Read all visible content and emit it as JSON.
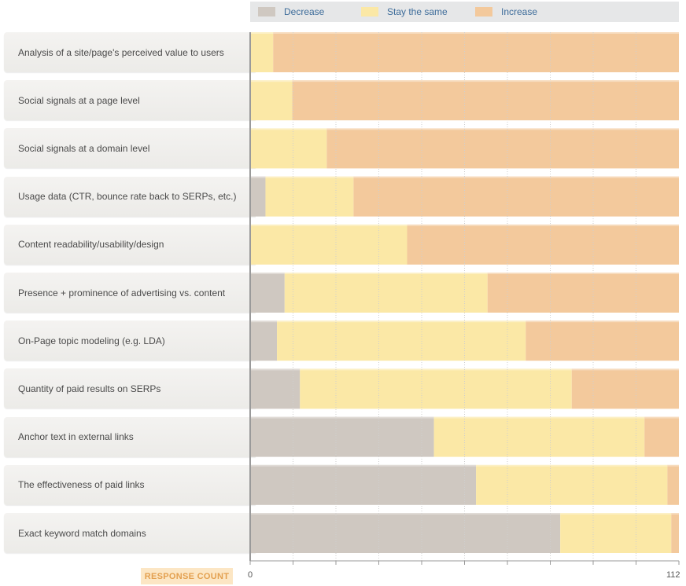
{
  "chart_data": {
    "type": "bar",
    "orientation": "horizontal",
    "stacked": true,
    "legend_position": "top",
    "legend": [
      "Decrease",
      "Stay the same",
      "Increase"
    ],
    "categories": [
      "Analysis of a site/page's perceived value to users",
      "Social signals at a page level",
      "Social signals at a domain level",
      "Usage data (CTR, bounce rate back to SERPs, etc.)",
      "Content readability/usability/design",
      "Presence + prominence of advertising vs. content",
      "On-Page topic modeling (e.g. LDA)",
      "Quantity of paid results on SERPs",
      "Anchor text in external links",
      "The effectiveness of paid links",
      "Exact keyword match domains"
    ],
    "series": [
      {
        "name": "Decrease",
        "values": [
          0,
          0,
          0,
          4,
          0,
          9,
          7,
          13,
          48,
          59,
          81
        ]
      },
      {
        "name": "Stay the same",
        "values": [
          6,
          11,
          20,
          23,
          41,
          53,
          65,
          71,
          55,
          50,
          29
        ]
      },
      {
        "name": "Increase",
        "values": [
          106,
          101,
          92,
          85,
          71,
          50,
          40,
          28,
          9,
          3,
          2
        ]
      }
    ],
    "xlabel": "RESPONSE COUNT",
    "xlim": [
      0,
      112
    ],
    "tick_labels": [
      "0",
      "112"
    ],
    "grid": true
  },
  "colors": {
    "decrease": "#cfc8c1",
    "stay": "#fbe8a6",
    "increase": "#f3c99c",
    "grid": "#cfcfcf",
    "axis": "#9a9a9a"
  },
  "icons": {
    "decrease": "legend-swatch-decrease",
    "stay": "legend-swatch-stay",
    "increase": "legend-swatch-increase"
  }
}
